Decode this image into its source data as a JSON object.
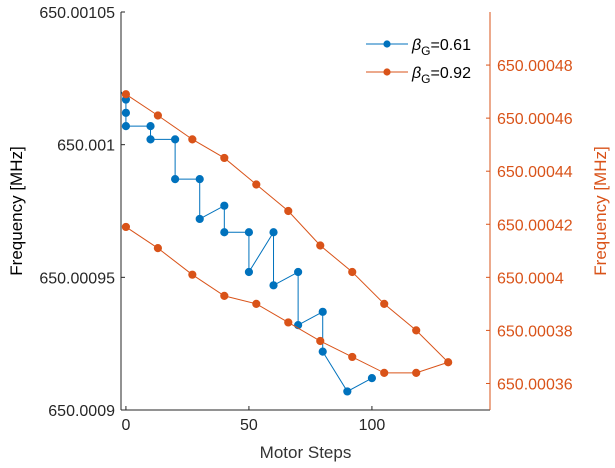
{
  "chart_data": {
    "type": "line",
    "xlabel": "Motor Steps",
    "ylabel_left": "Frequency [MHz]",
    "ylabel_right": "Frequency [MHz]",
    "xlim": [
      -2,
      148
    ],
    "ylim_left": [
      650.0009,
      650.00105
    ],
    "ylim_right": [
      650.00035,
      650.0005
    ],
    "x_ticks": [
      0,
      50,
      100
    ],
    "x_tick_labels": [
      "0",
      "50",
      "100"
    ],
    "y_left_ticks": [
      650.0009,
      650.00095,
      650.001,
      650.00105
    ],
    "y_left_tick_labels": [
      "650.0009",
      "650.00095",
      "650.001",
      "650.00105"
    ],
    "y_right_ticks": [
      650.00036,
      650.00038,
      650.0004,
      650.00042,
      650.00044,
      650.00046,
      650.00048
    ],
    "y_right_tick_labels": [
      "650.00036",
      "650.00038",
      "650.0004",
      "650.00042",
      "650.00044",
      "650.00046",
      "650.00048"
    ],
    "grid": false,
    "legend_position": "top-right",
    "series": [
      {
        "name": "βG=0.61",
        "legend_base": "β",
        "legend_sub": "G",
        "legend_suffix": "=0.61",
        "axis": "left",
        "color": "#0072BD",
        "marker": "circle",
        "x": [
          -2,
          0,
          0,
          0,
          10,
          10,
          20,
          20,
          30,
          30,
          40,
          40,
          50,
          50,
          60,
          60,
          70,
          70,
          80,
          80,
          90,
          100
        ],
        "y": [
          650.00102,
          650.001017,
          650.001012,
          650.001007,
          650.001007,
          650.001002,
          650.001002,
          650.000987,
          650.000987,
          650.000972,
          650.000977,
          650.000967,
          650.000967,
          650.000952,
          650.000967,
          650.000947,
          650.000952,
          650.000932,
          650.000937,
          650.000922,
          650.000907,
          650.000912
        ]
      },
      {
        "name": "βG=0.92",
        "legend_base": "β",
        "legend_sub": "G",
        "legend_suffix": "=0.92",
        "axis": "right",
        "color": "#D95319",
        "marker": "circle",
        "x": [
          0,
          13,
          27,
          40,
          53,
          66,
          79,
          92,
          105,
          118,
          131,
          118,
          105,
          92,
          79,
          66,
          53,
          40,
          27,
          13,
          0
        ],
        "y": [
          650.000469,
          650.000461,
          650.000452,
          650.000445,
          650.000435,
          650.000425,
          650.000412,
          650.000402,
          650.00039,
          650.00038,
          650.000368,
          650.000364,
          650.000364,
          650.00037,
          650.000376,
          650.000383,
          650.00039,
          650.000393,
          650.000401,
          650.000411,
          650.000419
        ]
      }
    ]
  }
}
